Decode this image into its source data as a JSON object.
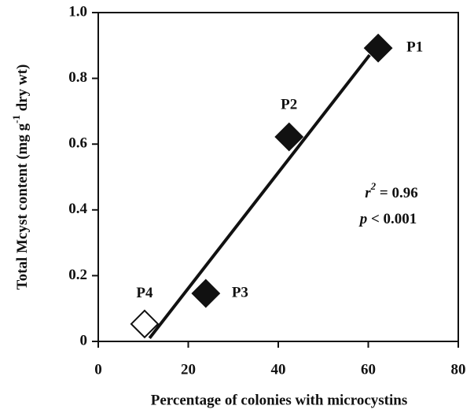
{
  "chart_data": {
    "type": "scatter",
    "xlabel": "Percentage of colonies with microcystins",
    "ylabel": [
      "Total Mcyst content (mg g",
      "-1",
      " dry wt)"
    ],
    "x": [
      62.2,
      42.4,
      23.9,
      10.3
    ],
    "values": [
      0.892,
      0.622,
      0.146,
      0.053
    ],
    "labels": [
      "P1",
      "P2",
      "P3",
      "P4"
    ],
    "colors": [
      "#111111",
      "#111111",
      "#111111",
      "#ffffff"
    ],
    "fit_line": {
      "x": [
        11.4,
        60.3
      ],
      "y": [
        0.01,
        0.871
      ]
    },
    "annotation": [
      [
        "r",
        "2",
        " = 0.96"
      ],
      [
        "p",
        " < 0.001"
      ]
    ],
    "xlim": [
      0,
      80
    ],
    "xticks": [
      0,
      20,
      40,
      60,
      80
    ],
    "ylim": [
      0,
      1
    ],
    "yticks": [
      0,
      0.2,
      0.4,
      0.6,
      0.8,
      {
        "value": 1,
        "label": "1.0"
      }
    ]
  }
}
